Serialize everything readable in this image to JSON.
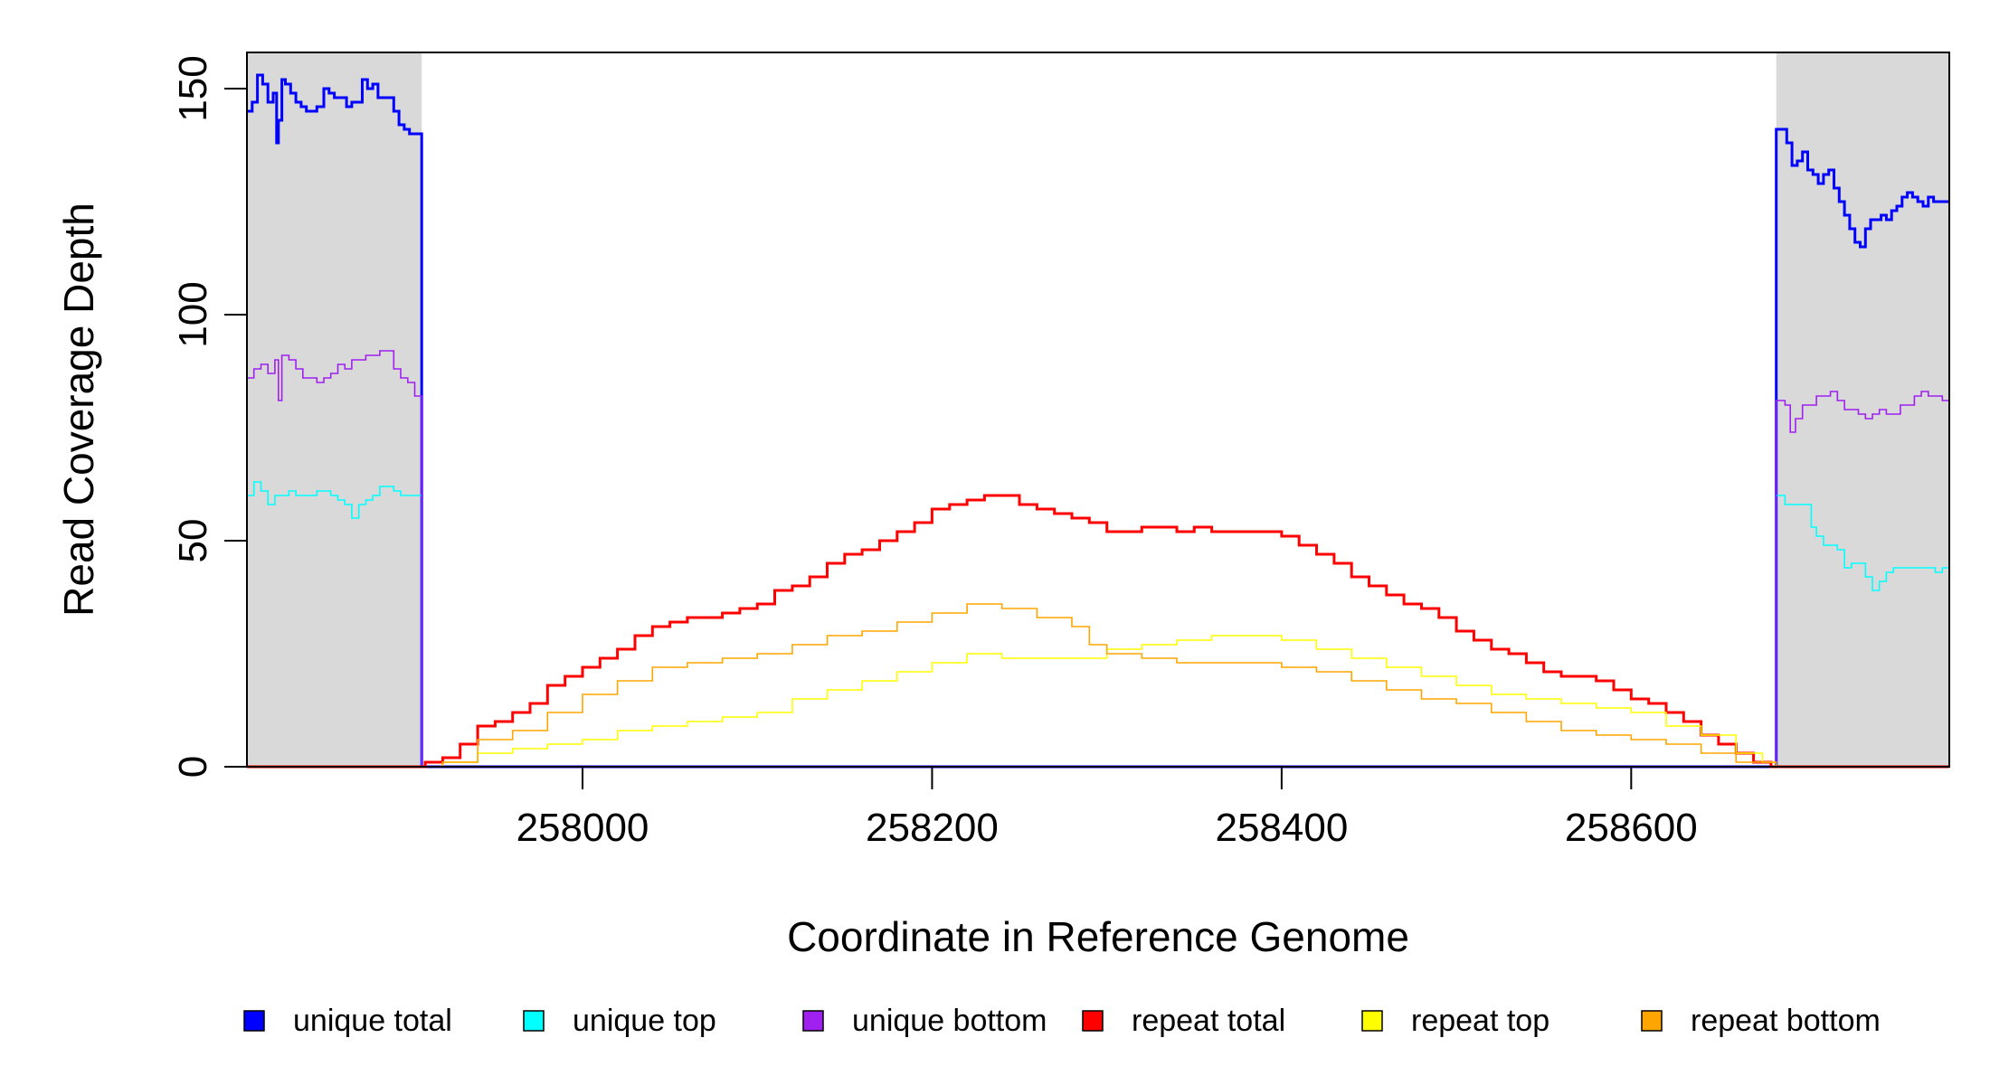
{
  "chart_data": {
    "type": "line",
    "title": "",
    "xlabel": "Coordinate in Reference Genome",
    "ylabel": "Read Coverage Depth",
    "xlim": [
      257808,
      258782
    ],
    "ylim": [
      0,
      158
    ],
    "x_ticks": [
      258000,
      258200,
      258400,
      258600
    ],
    "x_tick_labels": [
      "258000",
      "258200",
      "258400",
      "258600"
    ],
    "y_ticks": [
      0,
      50,
      100,
      150
    ],
    "y_tick_labels": [
      "0",
      "50",
      "100",
      "150"
    ],
    "grid": false,
    "legend_position": "bottom",
    "shaded_regions": [
      {
        "x0": 257808,
        "x1": 257908,
        "color": "#d9d9d9"
      },
      {
        "x0": 258683,
        "x1": 258782,
        "color": "#d9d9d9"
      }
    ],
    "series": [
      {
        "name": "unique total",
        "color": "#0000ff",
        "width": 3,
        "x": [
          257808,
          257811,
          257814,
          257817,
          257820,
          257823,
          257825,
          257826,
          257828,
          257830,
          257833,
          257836,
          257839,
          257842,
          257845,
          257848,
          257852,
          257855,
          257858,
          257862,
          257865,
          257868,
          257871,
          257874,
          257877,
          257880,
          257883,
          257886,
          257889,
          257892,
          257895,
          257898,
          257901,
          257904,
          257907,
          257908,
          257908,
          258683,
          258683,
          258686,
          258689,
          258692,
          258695,
          258698,
          258701,
          258704,
          258707,
          258710,
          258713,
          258716,
          258719,
          258722,
          258725,
          258728,
          258731,
          258734,
          258737,
          258740,
          258743,
          258746,
          258749,
          258752,
          258755,
          258758,
          258761,
          258764,
          258767,
          258770,
          258773,
          258776,
          258779,
          258782
        ],
        "y": [
          145,
          147,
          153,
          151,
          147,
          149,
          138,
          143,
          152,
          151,
          149,
          147,
          146,
          145,
          145,
          146,
          150,
          149,
          148,
          148,
          146,
          147,
          147,
          152,
          150,
          151,
          148,
          148,
          148,
          145,
          142,
          141,
          140,
          140,
          140,
          140,
          0,
          0,
          141,
          141,
          138,
          133,
          134,
          136,
          132,
          131,
          129,
          131,
          132,
          128,
          125,
          122,
          119,
          116,
          115,
          119,
          121,
          121,
          122,
          121,
          123,
          124,
          126,
          127,
          126,
          125,
          124,
          126,
          125,
          125,
          125,
          125
        ]
      },
      {
        "name": "unique top",
        "color": "#00ffff",
        "width": 1.6,
        "x": [
          257808,
          257812,
          257816,
          257820,
          257824,
          257828,
          257832,
          257836,
          257840,
          257844,
          257848,
          257852,
          257856,
          257860,
          257864,
          257868,
          257872,
          257876,
          257880,
          257884,
          257888,
          257892,
          257896,
          257900,
          257904,
          257908,
          257908,
          258683,
          258683,
          258688,
          258693,
          258698,
          258703,
          258706,
          258710,
          258714,
          258718,
          258722,
          258726,
          258730,
          258734,
          258738,
          258742,
          258746,
          258750,
          258754,
          258758,
          258762,
          258766,
          258770,
          258774,
          258778,
          258782
        ],
        "y": [
          60,
          63,
          61,
          58,
          60,
          60,
          61,
          60,
          60,
          60,
          61,
          61,
          60,
          59,
          58,
          55,
          58,
          59,
          60,
          62,
          62,
          61,
          60,
          60,
          60,
          60,
          0,
          0,
          60,
          58,
          58,
          58,
          53,
          51,
          49,
          49,
          48,
          44,
          45,
          45,
          42,
          39,
          41,
          43,
          44,
          44,
          44,
          44,
          44,
          44,
          43,
          44,
          45
        ]
      },
      {
        "name": "unique bottom",
        "color": "#a020f0",
        "width": 1.6,
        "x": [
          257808,
          257812,
          257816,
          257820,
          257824,
          257826,
          257828,
          257832,
          257836,
          257840,
          257844,
          257848,
          257852,
          257856,
          257860,
          257864,
          257868,
          257872,
          257876,
          257880,
          257884,
          257888,
          257892,
          257896,
          257900,
          257904,
          257908,
          257908,
          258683,
          258683,
          258688,
          258691,
          258694,
          258698,
          258702,
          258706,
          258710,
          258714,
          258718,
          258722,
          258726,
          258730,
          258734,
          258738,
          258742,
          258746,
          258750,
          258754,
          258758,
          258762,
          258766,
          258770,
          258774,
          258778,
          258782
        ],
        "y": [
          86,
          88,
          89,
          87,
          90,
          81,
          91,
          90,
          88,
          86,
          86,
          85,
          86,
          87,
          89,
          88,
          90,
          90,
          91,
          91,
          92,
          92,
          88,
          86,
          85,
          82,
          81,
          0,
          0,
          81,
          80,
          74,
          77,
          80,
          80,
          82,
          82,
          83,
          81,
          79,
          79,
          78,
          77,
          78,
          79,
          78,
          78,
          80,
          80,
          82,
          83,
          82,
          82,
          81,
          81
        ]
      },
      {
        "name": "repeat total",
        "color": "#ff0000",
        "width": 3,
        "x": [
          257808,
          257908,
          257910,
          257920,
          257930,
          257940,
          257950,
          257960,
          257970,
          257980,
          257990,
          258000,
          258010,
          258020,
          258030,
          258040,
          258050,
          258060,
          258070,
          258080,
          258090,
          258100,
          258110,
          258120,
          258130,
          258140,
          258150,
          258160,
          258170,
          258180,
          258190,
          258200,
          258210,
          258220,
          258230,
          258240,
          258250,
          258260,
          258270,
          258280,
          258290,
          258300,
          258310,
          258320,
          258330,
          258340,
          258350,
          258360,
          258370,
          258380,
          258390,
          258400,
          258410,
          258420,
          258430,
          258440,
          258450,
          258460,
          258470,
          258480,
          258490,
          258500,
          258510,
          258520,
          258530,
          258540,
          258550,
          258560,
          258570,
          258580,
          258590,
          258600,
          258610,
          258620,
          258630,
          258640,
          258650,
          258660,
          258670,
          258675,
          258680,
          258683,
          258782
        ],
        "y": [
          0,
          0,
          1,
          2,
          5,
          9,
          10,
          12,
          14,
          18,
          20,
          22,
          24,
          26,
          29,
          31,
          32,
          33,
          33,
          34,
          35,
          36,
          39,
          40,
          42,
          45,
          47,
          48,
          50,
          52,
          54,
          57,
          58,
          59,
          60,
          60,
          58,
          57,
          56,
          55,
          54,
          52,
          52,
          53,
          53,
          52,
          53,
          52,
          52,
          52,
          52,
          51,
          49,
          47,
          45,
          42,
          40,
          38,
          36,
          35,
          33,
          30,
          28,
          26,
          25,
          23,
          21,
          20,
          20,
          19,
          17,
          15,
          14,
          12,
          10,
          7,
          5,
          3,
          1,
          1,
          0,
          0,
          0
        ]
      },
      {
        "name": "repeat top",
        "color": "#ffff00",
        "width": 1.6,
        "x": [
          257808,
          257908,
          257920,
          257940,
          257960,
          257980,
          258000,
          258020,
          258040,
          258060,
          258080,
          258100,
          258120,
          258140,
          258160,
          258180,
          258200,
          258220,
          258240,
          258260,
          258280,
          258300,
          258320,
          258340,
          258360,
          258380,
          258400,
          258420,
          258440,
          258460,
          258480,
          258500,
          258520,
          258540,
          258560,
          258580,
          258600,
          258620,
          258640,
          258660,
          258675,
          258683,
          258782
        ],
        "y": [
          0,
          0,
          1,
          3,
          4,
          5,
          6,
          8,
          9,
          10,
          11,
          12,
          15,
          17,
          19,
          21,
          23,
          25,
          24,
          24,
          24,
          26,
          27,
          28,
          29,
          29,
          28,
          26,
          24,
          22,
          20,
          18,
          16,
          15,
          14,
          13,
          12,
          9,
          7,
          3,
          1,
          0,
          0
        ]
      },
      {
        "name": "repeat bottom",
        "color": "#ffa500",
        "width": 1.6,
        "x": [
          257808,
          257908,
          257920,
          257940,
          257960,
          257980,
          258000,
          258020,
          258040,
          258060,
          258080,
          258100,
          258120,
          258140,
          258160,
          258180,
          258200,
          258220,
          258240,
          258260,
          258280,
          258290,
          258300,
          258320,
          258340,
          258360,
          258380,
          258400,
          258420,
          258440,
          258460,
          258480,
          258500,
          258520,
          258540,
          258560,
          258580,
          258600,
          258620,
          258640,
          258660,
          258675,
          258683,
          258782
        ],
        "y": [
          0,
          0,
          1,
          6,
          8,
          12,
          16,
          19,
          22,
          23,
          24,
          25,
          27,
          29,
          30,
          32,
          34,
          36,
          35,
          33,
          31,
          27,
          25,
          24,
          23,
          23,
          23,
          22,
          21,
          19,
          17,
          15,
          14,
          12,
          10,
          8,
          7,
          6,
          5,
          3,
          1,
          1,
          0,
          0
        ]
      }
    ]
  }
}
